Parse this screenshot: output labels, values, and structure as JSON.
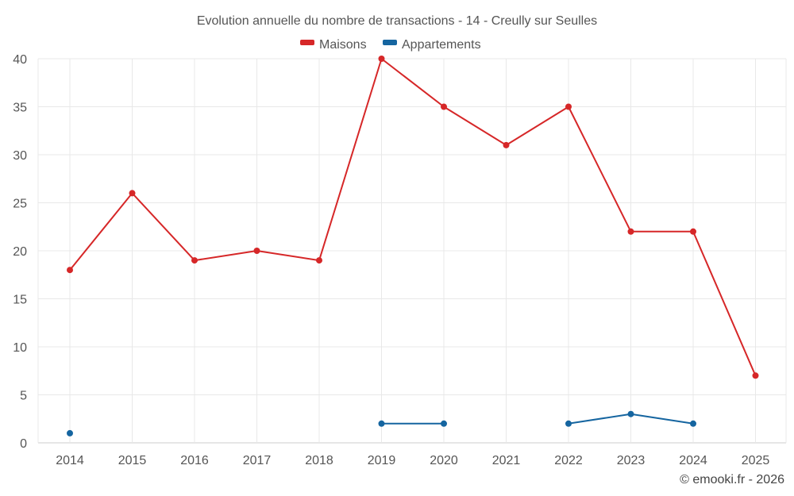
{
  "chart_data": {
    "type": "line",
    "title": "Evolution annuelle du nombre de transactions - 14 - Creully sur Seulles",
    "categories": [
      "2014",
      "2015",
      "2016",
      "2017",
      "2018",
      "2019",
      "2020",
      "2021",
      "2022",
      "2023",
      "2024",
      "2025"
    ],
    "series": [
      {
        "name": "Maisons",
        "color": "#d62728",
        "values": [
          18,
          26,
          19,
          20,
          19,
          40,
          35,
          31,
          35,
          22,
          22,
          7
        ]
      },
      {
        "name": "Appartements",
        "color": "#1565a0",
        "values": [
          1,
          null,
          null,
          null,
          null,
          2,
          2,
          null,
          2,
          3,
          2,
          null
        ]
      }
    ],
    "ylim": [
      0,
      40
    ],
    "yticks": [
      0,
      5,
      10,
      15,
      20,
      25,
      30,
      35,
      40
    ],
    "grid": true,
    "legend_position": "top-center",
    "xlabel": "",
    "ylabel": ""
  },
  "credit": "© emooki.fr - 2026"
}
